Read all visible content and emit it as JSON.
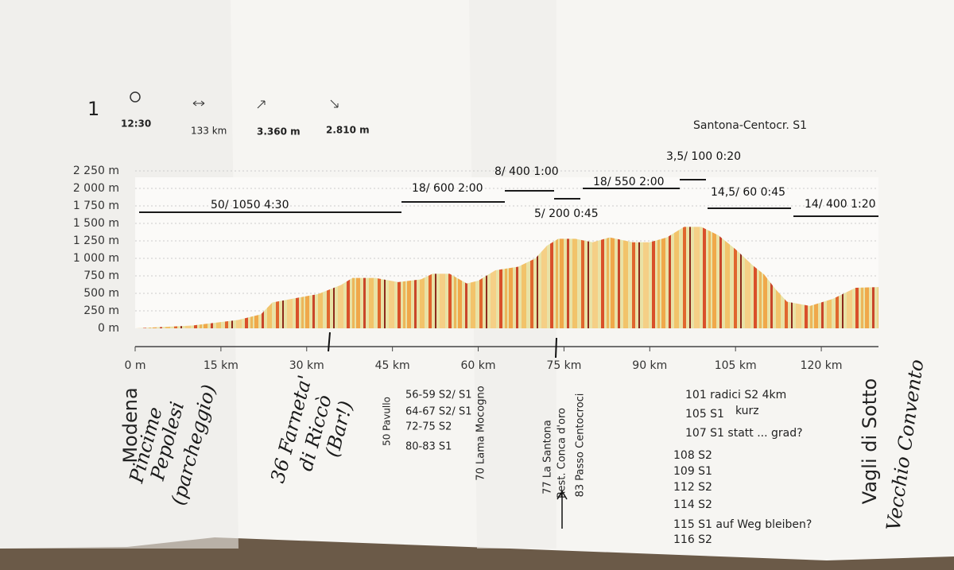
{
  "chart_data": {
    "type": "area",
    "header": {
      "number": "1",
      "time": "12:30",
      "distance": "133 km",
      "ascent": "3.360 m",
      "descent": "2.810 m",
      "route": "Santona-Centocr. S1"
    },
    "x": [
      0,
      10,
      18,
      22,
      24,
      28,
      32,
      36,
      38,
      42,
      46,
      50,
      52,
      55,
      58,
      60,
      63,
      67,
      70,
      72,
      74,
      77,
      80,
      83,
      87,
      90,
      93,
      96,
      99,
      102,
      105,
      108,
      110,
      112,
      114,
      118,
      122,
      126,
      130
    ],
    "values": [
      0,
      40,
      120,
      200,
      370,
      430,
      490,
      620,
      720,
      720,
      660,
      700,
      780,
      780,
      640,
      680,
      830,
      880,
      1000,
      1180,
      1280,
      1280,
      1230,
      1300,
      1230,
      1230,
      1300,
      1450,
      1450,
      1330,
      1130,
      900,
      770,
      560,
      380,
      320,
      420,
      580,
      590
    ],
    "xlim": [
      0,
      130
    ],
    "ylim": [
      0,
      2250
    ],
    "xticks": [
      {
        "value": 0,
        "label": "0 m"
      },
      {
        "value": 15,
        "label": "15 km"
      },
      {
        "value": 30,
        "label": "30 km"
      },
      {
        "value": 45,
        "label": "45 km"
      },
      {
        "value": 60,
        "label": "60 km"
      },
      {
        "value": 75,
        "label": "75 km"
      },
      {
        "value": 90,
        "label": "90 km"
      },
      {
        "value": 105,
        "label": "105 km"
      },
      {
        "value": 120,
        "label": "120 km"
      }
    ],
    "yticks": [
      {
        "value": 0,
        "label": "0 m"
      },
      {
        "value": 250,
        "label": "250 m"
      },
      {
        "value": 500,
        "label": "500 m"
      },
      {
        "value": 750,
        "label": "750 m"
      },
      {
        "value": 1000,
        "label": "1 000 m"
      },
      {
        "value": 1250,
        "label": "1 250 m"
      },
      {
        "value": 1500,
        "label": "1 500 m"
      },
      {
        "value": 1750,
        "label": "1 750 m"
      },
      {
        "value": 2000,
        "label": "2 000 m"
      },
      {
        "value": 2250,
        "label": "2 250 m"
      }
    ],
    "grid": true,
    "segments": [
      "50/ 1050  4:30",
      "18/ 600   2:00",
      "8/ 400   1:00",
      "5/ 200   0:45",
      "18/ 550   2:00",
      "3,5/ 100  0:20",
      "14,5/ 60   0:45",
      "14/ 400   1:20"
    ],
    "places": [
      "Modena",
      "Vagli di Sotto"
    ],
    "printed_notes": [
      "50 Pavullo",
      "56-59 S2/ S1",
      "64-67 S2/ S1",
      "72-75 S2",
      "80-83 S1",
      "70 Lama Mocogno",
      "77 La Santona",
      "Rest. Conca d'oro",
      "83 Passo Centocroci",
      "101  radici S2 4km",
      "105 S1",
      "kurz",
      "107 S1 statt ... grad?",
      "108 S2",
      "109 S1",
      "112 S2",
      "114 S2",
      "115 S1 auf Weg bleiben?",
      "116 S2"
    ],
    "handwritten_notes": [
      "Pincime",
      "Pepolesi",
      "(parcheggio)",
      "36 Farneta'",
      "di Riccò",
      "(Bar!)",
      "Vecchio Convento"
    ]
  }
}
